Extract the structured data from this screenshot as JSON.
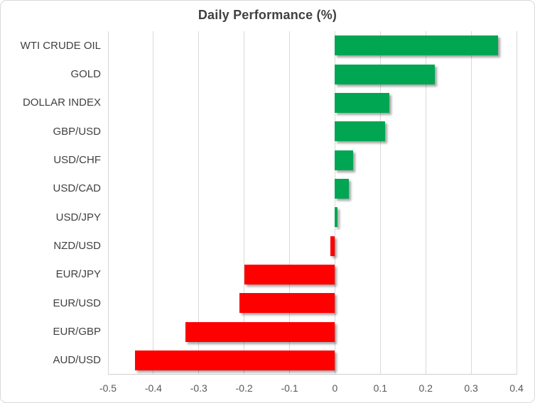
{
  "chart_data": {
    "type": "bar",
    "orientation": "horizontal",
    "title": "Daily Performance (%)",
    "categories": [
      "WTI CRUDE OIL",
      "GOLD",
      "DOLLAR INDEX",
      "GBP/USD",
      "USD/CHF",
      "USD/CAD",
      "USD/JPY",
      "NZD/USD",
      "EUR/JPY",
      "EUR/USD",
      "EUR/GBP",
      "AUD/USD"
    ],
    "values": [
      0.36,
      0.22,
      0.12,
      0.11,
      0.04,
      0.03,
      0.005,
      -0.01,
      -0.2,
      -0.21,
      -0.33,
      -0.44
    ],
    "xlabel": "",
    "ylabel": "",
    "xlim": [
      -0.5,
      0.4
    ],
    "xtick_values": [
      -0.5,
      -0.4,
      -0.3,
      -0.2,
      -0.1,
      0,
      0.1,
      0.2,
      0.3,
      0.4
    ],
    "xtick_labels": [
      "-0.5",
      "-0.4",
      "-0.3",
      "-0.2",
      "-0.1",
      "0",
      "0.1",
      "0.2",
      "0.3",
      "0.4"
    ],
    "grid": true,
    "legend": "none",
    "colors": {
      "positive": "#00A651",
      "negative": "#FF0000",
      "gridline": "#D9D9D9",
      "axis_line": "#CFCFCF",
      "title_text": "#404040",
      "category_text": "#404040",
      "tick_text": "#595959",
      "frame_border": "#D9D9D9",
      "background": "#FFFFFF"
    }
  }
}
